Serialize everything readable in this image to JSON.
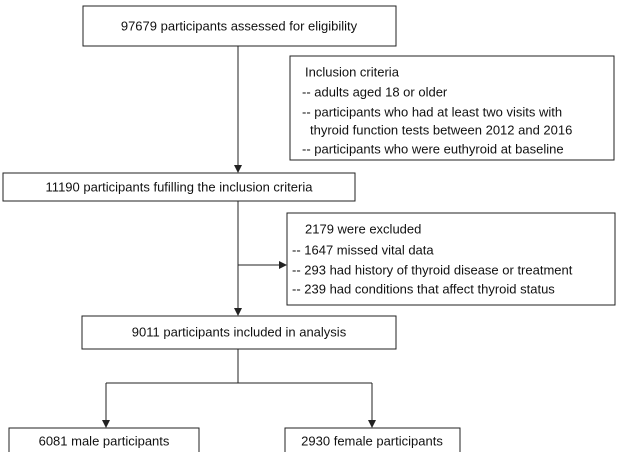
{
  "nodes": [
    {
      "label": "97679 participants assessed for eligibility"
    },
    {
      "label": "Inclusion criteria",
      "items": [
        "-- adults aged 18 or older",
        "-- participants who had at least two visits with",
        "thyroid function tests between 2012 and 2016",
        "-- participants who were euthyroid at baseline"
      ]
    },
    {
      "label": "11190 participants fufilling the inclusion criteria"
    },
    {
      "label": "2179 were excluded",
      "items": [
        "-- 1647 missed vital data",
        "-- 293 had history of thyroid disease or treatment",
        "-- 239 had conditions that affect thyroid status"
      ]
    },
    {
      "label": "9011 participants included in analysis"
    },
    {
      "label": "6081 male participants"
    },
    {
      "label": "2930 female participants"
    }
  ]
}
